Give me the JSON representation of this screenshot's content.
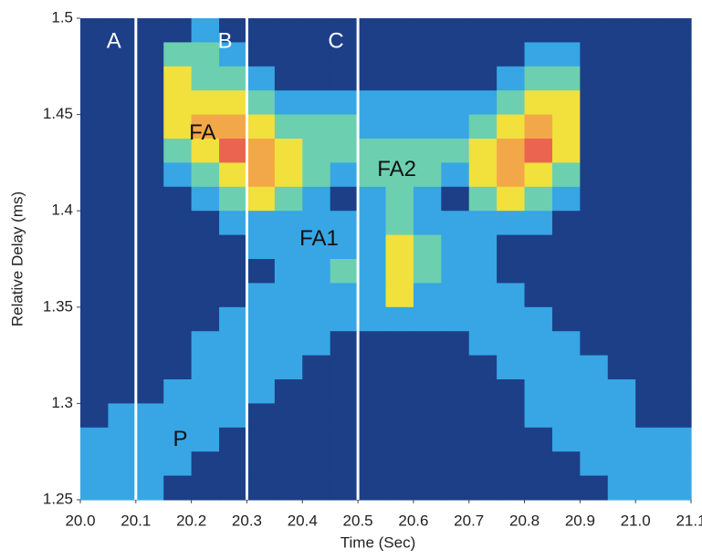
{
  "chart_data": {
    "type": "heatmap",
    "x_label": "Time (Sec)",
    "y_label": "Relative Delay (ms)",
    "xlim": [
      20.0,
      21.1
    ],
    "ylim": [
      1.25,
      1.5
    ],
    "xticks": [
      {
        "value": 20.0,
        "label": "20.0"
      },
      20.1,
      20.2,
      20.3,
      20.4,
      20.5,
      20.6,
      20.7,
      20.8,
      20.9,
      {
        "value": 21.0,
        "label": "21.0"
      },
      21.1
    ],
    "yticks": [
      1.25,
      1.3,
      1.35,
      1.4,
      1.45,
      1.5
    ],
    "colorscale": [
      "#1c3f87",
      "#38a6e4",
      "#6cd0b0",
      "#f2e03c",
      "#f2a848",
      "#ea6450"
    ],
    "z": [
      [
        0,
        0,
        0,
        0,
        1,
        0,
        0,
        0,
        0,
        0,
        0,
        0,
        0,
        0,
        0,
        0,
        0,
        0,
        0,
        0,
        0,
        0
      ],
      [
        0,
        0,
        0,
        2,
        2,
        1,
        0,
        0,
        0,
        0,
        0,
        0,
        0,
        0,
        0,
        0,
        1,
        1,
        0,
        0,
        0,
        0
      ],
      [
        0,
        0,
        0,
        3,
        2,
        2,
        1,
        0,
        0,
        0,
        0,
        0,
        0,
        0,
        0,
        1,
        2,
        2,
        0,
        0,
        0,
        0
      ],
      [
        0,
        0,
        0,
        3,
        3,
        3,
        2,
        1,
        1,
        1,
        1,
        1,
        1,
        1,
        1,
        2,
        3,
        3,
        0,
        0,
        0,
        0
      ],
      [
        0,
        0,
        0,
        3,
        4,
        4,
        3,
        2,
        2,
        2,
        1,
        1,
        1,
        1,
        2,
        3,
        4,
        3,
        0,
        0,
        0,
        0
      ],
      [
        0,
        0,
        0,
        2,
        3,
        5,
        4,
        3,
        2,
        2,
        2,
        2,
        2,
        2,
        3,
        4,
        5,
        3,
        0,
        0,
        0,
        0
      ],
      [
        0,
        0,
        0,
        1,
        2,
        3,
        4,
        3,
        2,
        1,
        2,
        2,
        2,
        1,
        3,
        4,
        3,
        2,
        0,
        0,
        0,
        0
      ],
      [
        0,
        0,
        0,
        0,
        1,
        2,
        3,
        2,
        1,
        0,
        1,
        2,
        1,
        0,
        2,
        3,
        2,
        1,
        0,
        0,
        0,
        0
      ],
      [
        0,
        0,
        0,
        0,
        0,
        1,
        1,
        1,
        1,
        1,
        1,
        2,
        1,
        1,
        1,
        1,
        1,
        0,
        0,
        0,
        0,
        0
      ],
      [
        0,
        0,
        0,
        0,
        0,
        0,
        1,
        1,
        1,
        1,
        1,
        3,
        2,
        1,
        1,
        0,
        0,
        0,
        0,
        0,
        0,
        0
      ],
      [
        0,
        0,
        0,
        0,
        0,
        0,
        0,
        1,
        1,
        2,
        1,
        3,
        2,
        1,
        1,
        0,
        0,
        0,
        0,
        0,
        0,
        0
      ],
      [
        0,
        0,
        0,
        0,
        0,
        0,
        1,
        1,
        1,
        1,
        1,
        3,
        1,
        1,
        1,
        1,
        0,
        0,
        0,
        0,
        0,
        0
      ],
      [
        0,
        0,
        0,
        0,
        0,
        1,
        1,
        1,
        1,
        1,
        1,
        1,
        1,
        1,
        1,
        1,
        1,
        0,
        0,
        0,
        0,
        0
      ],
      [
        0,
        0,
        0,
        0,
        1,
        1,
        1,
        1,
        1,
        0,
        0,
        0,
        0,
        0,
        1,
        1,
        1,
        1,
        0,
        0,
        0,
        0
      ],
      [
        0,
        0,
        0,
        0,
        1,
        1,
        1,
        1,
        0,
        0,
        0,
        0,
        0,
        0,
        0,
        1,
        1,
        1,
        1,
        0,
        0,
        0
      ],
      [
        0,
        0,
        0,
        1,
        1,
        1,
        1,
        0,
        0,
        0,
        0,
        0,
        0,
        0,
        0,
        0,
        1,
        1,
        1,
        1,
        0,
        0
      ],
      [
        0,
        1,
        1,
        1,
        1,
        1,
        0,
        0,
        0,
        0,
        0,
        0,
        0,
        0,
        0,
        0,
        1,
        1,
        1,
        1,
        0,
        0
      ],
      [
        1,
        1,
        1,
        1,
        1,
        0,
        0,
        0,
        0,
        0,
        0,
        0,
        0,
        0,
        0,
        0,
        0,
        1,
        1,
        1,
        1,
        1
      ],
      [
        1,
        1,
        1,
        1,
        0,
        0,
        0,
        0,
        0,
        0,
        0,
        0,
        0,
        0,
        0,
        0,
        0,
        0,
        1,
        1,
        1,
        1
      ],
      [
        1,
        1,
        1,
        0,
        0,
        0,
        0,
        0,
        0,
        0,
        0,
        0,
        0,
        0,
        0,
        0,
        0,
        0,
        0,
        1,
        1,
        1
      ]
    ],
    "vlines": [
      {
        "x": 20.1,
        "label": "A"
      },
      {
        "x": 20.3,
        "label": "B"
      },
      {
        "x": 20.5,
        "label": "C"
      }
    ],
    "annotations": [
      {
        "text": "FA",
        "x": 20.22,
        "y": 1.44
      },
      {
        "text": "FA1",
        "x": 20.43,
        "y": 1.385
      },
      {
        "text": "FA2",
        "x": 20.57,
        "y": 1.421
      },
      {
        "text": "P",
        "x": 20.18,
        "y": 1.281
      }
    ]
  }
}
